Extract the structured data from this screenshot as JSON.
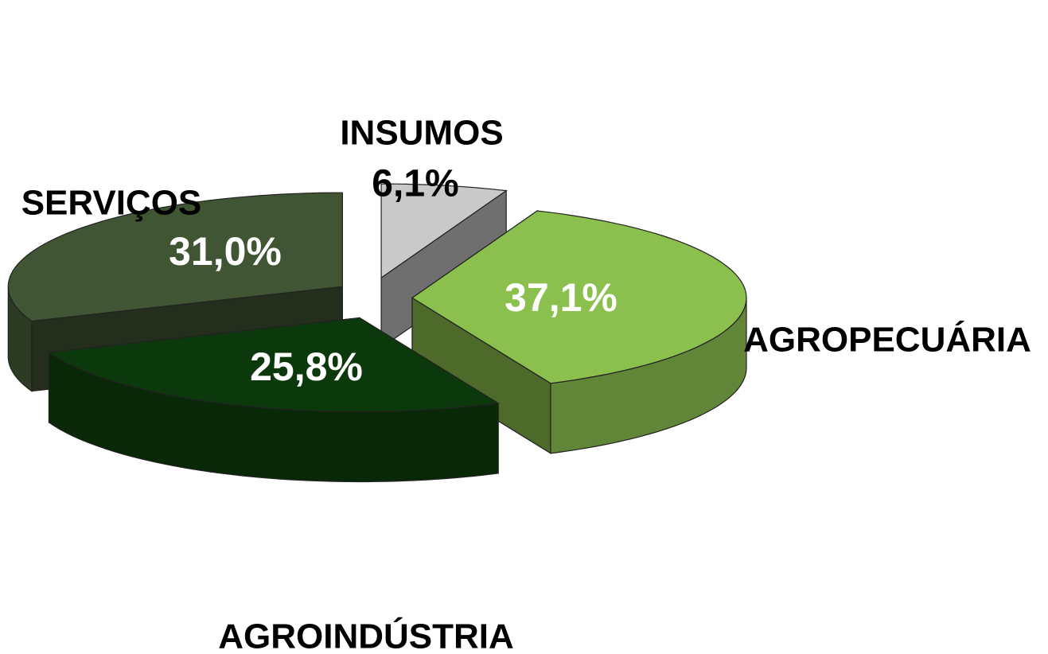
{
  "chart_data": {
    "type": "pie",
    "categories": [
      "INSUMOS",
      "AGROPECUÁRIA",
      "AGROINDÚSTRIA",
      "SERVIÇOS"
    ],
    "values": [
      6.1,
      37.1,
      25.8,
      31.0
    ],
    "value_labels": [
      "6,1%",
      "37,1%",
      "25,8%",
      "31,0%"
    ],
    "colors": [
      "#c9c9c9",
      "#8cc04e",
      "#0c390c",
      "#3f5533"
    ]
  }
}
